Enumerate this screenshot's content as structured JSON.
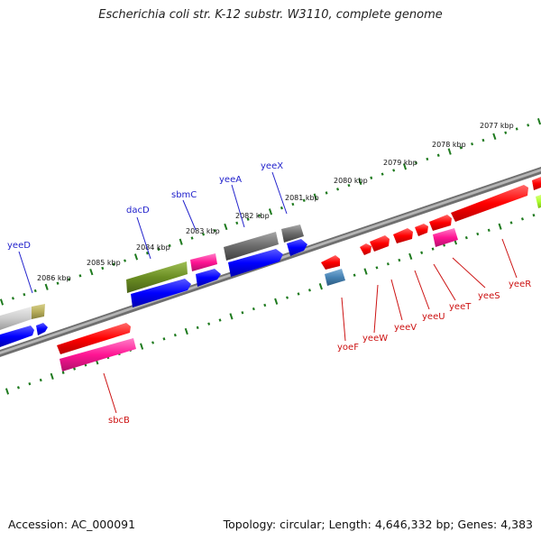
{
  "title": "Escherichia coli str. K-12 substr. W3110, complete genome",
  "footer": {
    "accession": "Accession: AC_000091",
    "stats": "Topology: circular; Length: 4,646,332 bp; Genes: 4,383"
  },
  "colors": {
    "backbone": "#7d7d7d",
    "ruler": "#1e7a1e",
    "label_upper": "#2222cc",
    "label_lower": "#cc1111"
  },
  "ruler_labels": [
    "2077 kbp",
    "2078 kbp",
    "2079 kbp",
    "2080 kbp",
    "2081 kbp",
    "2082 kbp",
    "2083 kbp",
    "2084 kbp",
    "2085 kbp",
    "2086 kbp"
  ],
  "genes_upper": [
    "yeeX",
    "yeeA",
    "sbmC",
    "dacD",
    "yeeD"
  ],
  "genes_lower": [
    "yoeF",
    "yeeW",
    "yeeV",
    "yeeU",
    "yeeT",
    "yeeS",
    "yeeR",
    "sbcB"
  ]
}
